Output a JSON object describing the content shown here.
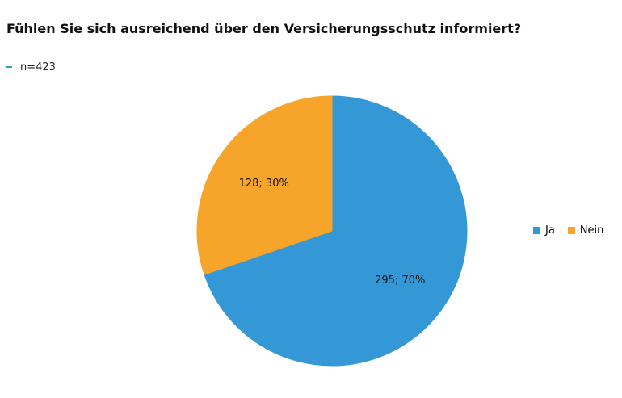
{
  "chart_data": {
    "type": "pie",
    "title": "Fühlen Sie sich ausreichend über den Versicherungsschutz informiert?",
    "note": "n=423",
    "legend_position": "right",
    "start_angle_deg": 0,
    "direction": "clockwise",
    "slices": [
      {
        "name": "Ja",
        "value": 295,
        "percent": 70,
        "label": "295; 70%",
        "color": "#3498d6"
      },
      {
        "name": "Nein",
        "value": 128,
        "percent": 30,
        "label": "128; 30%",
        "color": "#f7a52a"
      }
    ],
    "legend": [
      "Ja",
      "Nein"
    ]
  }
}
